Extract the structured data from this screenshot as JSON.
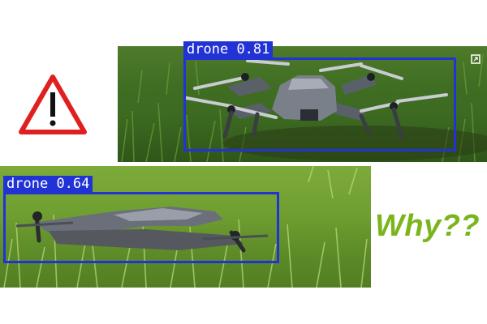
{
  "detections": [
    {
      "label": "drone",
      "score": "0.81"
    },
    {
      "label": "drone",
      "score": "0.64"
    }
  ],
  "caption": "Why??",
  "icons": {
    "warning": "warning-icon",
    "expand": "expand-icon"
  },
  "colors": {
    "box": "#2233d6",
    "warning_red": "#e02020",
    "caption_green": "#7bb51e"
  }
}
